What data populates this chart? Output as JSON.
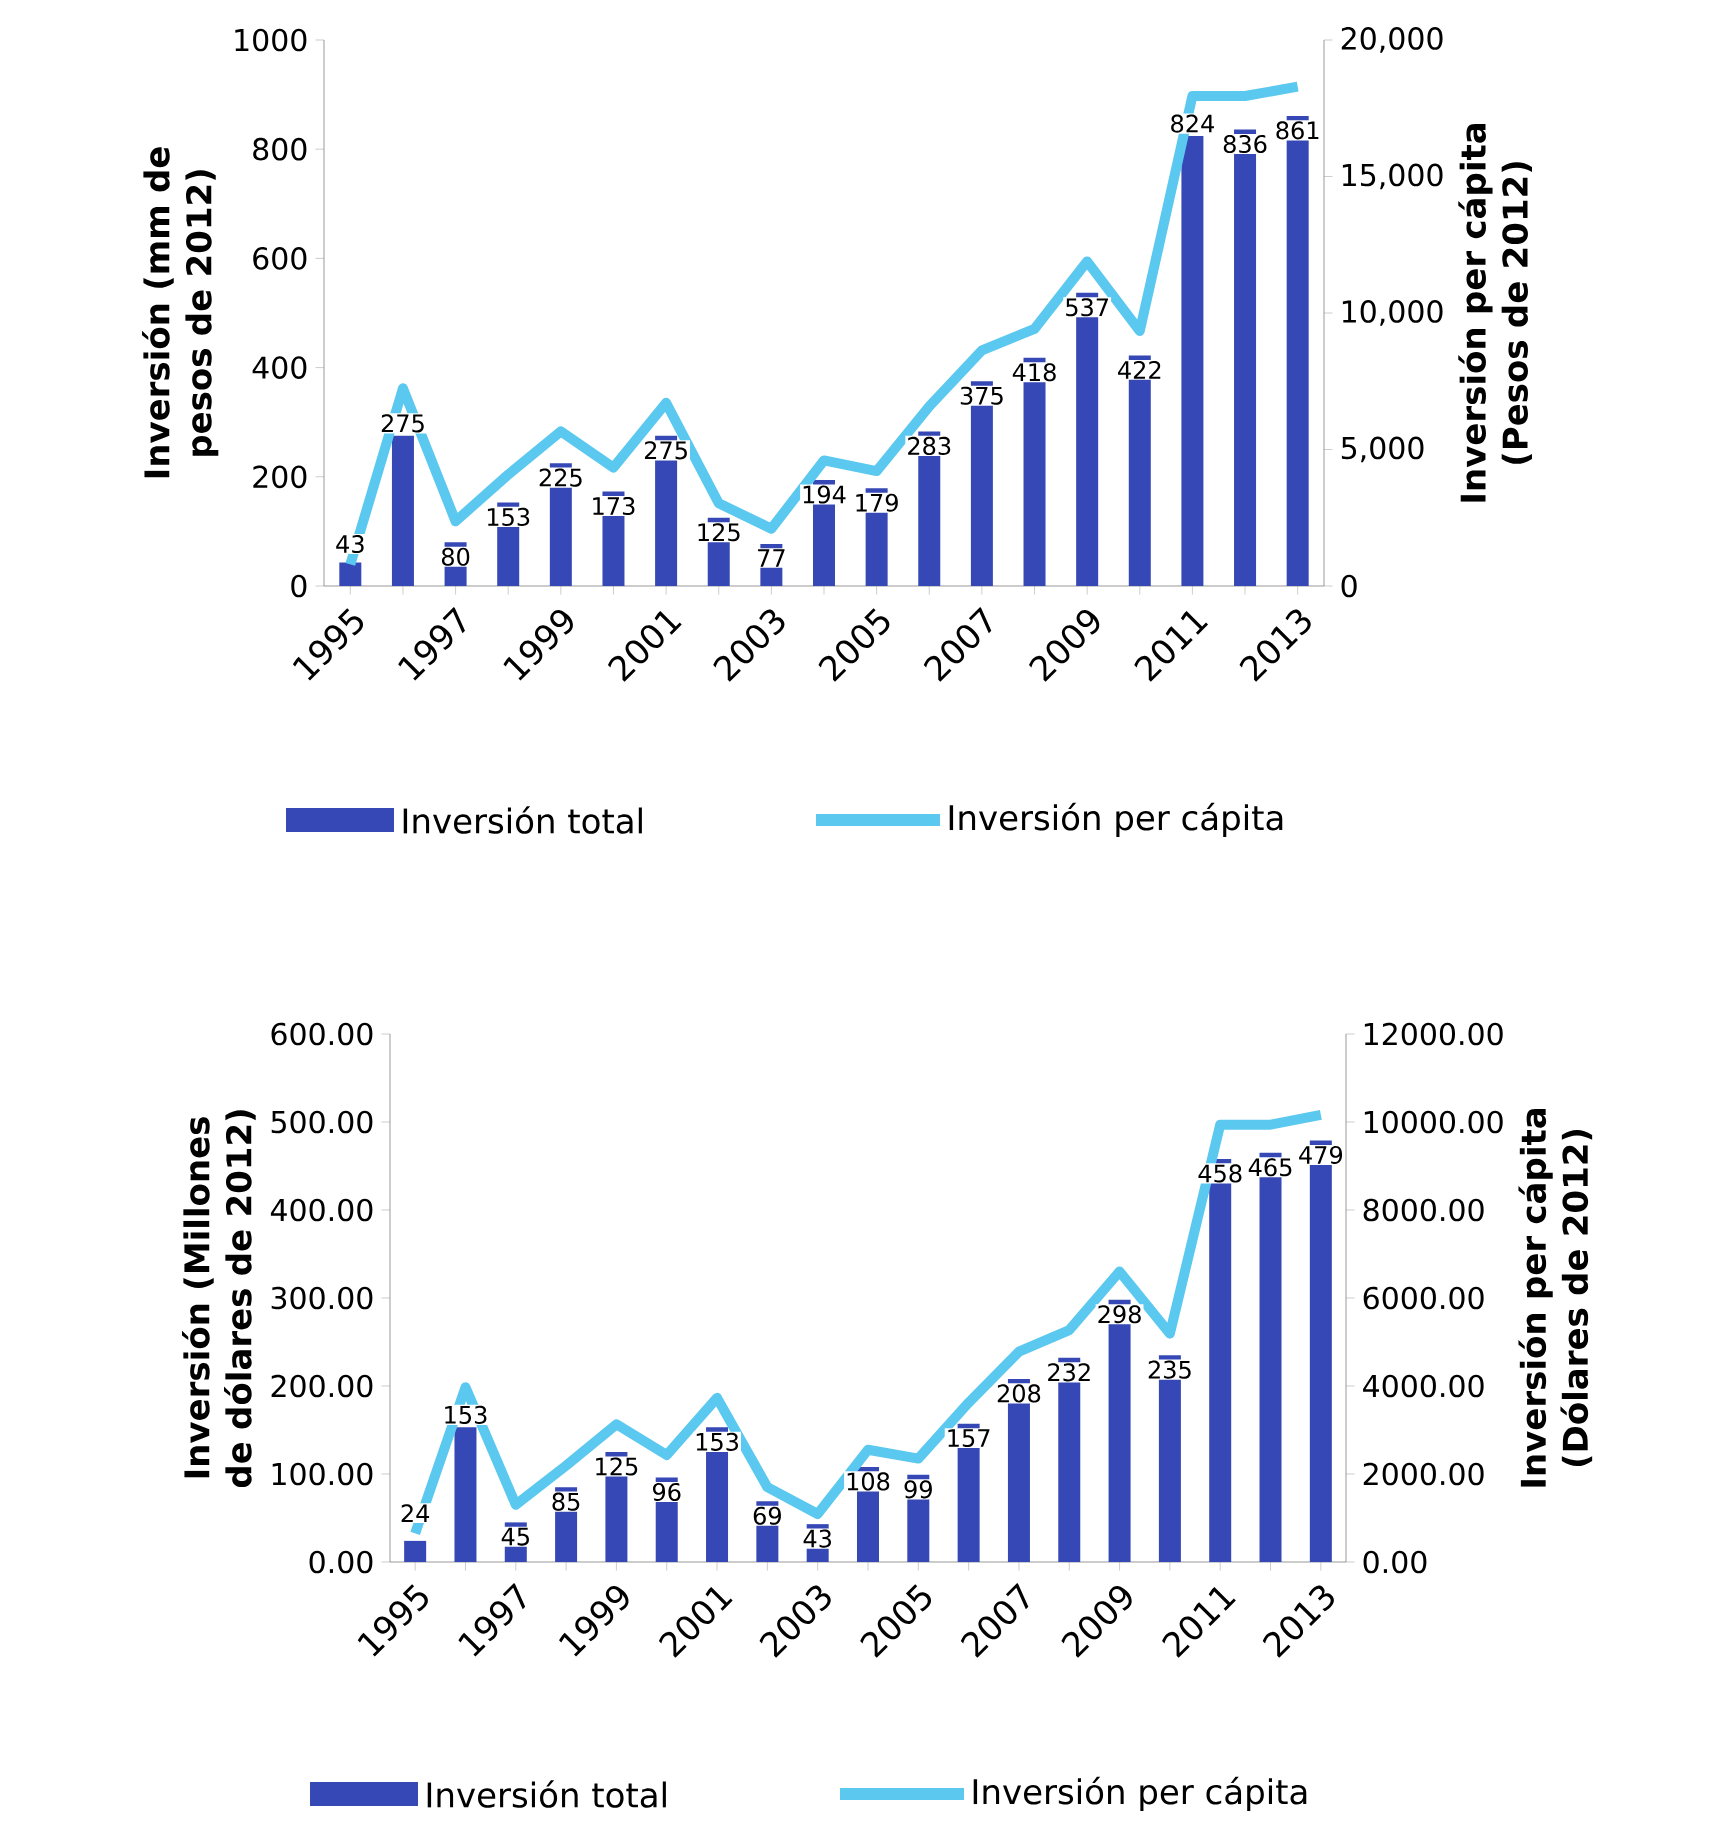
{
  "chart_data": [
    {
      "type": "bar",
      "categories": [
        "1995",
        null,
        "1997",
        null,
        "1999",
        null,
        "2001",
        null,
        "2003",
        null,
        "2005",
        null,
        "2007",
        null,
        "2009",
        null,
        "2011",
        null,
        "2013"
      ],
      "ylabel": "Inversión (mm de pesos de 2012)",
      "y2label": "Inversión per cápita (Pesos de 2012)",
      "series": [
        {
          "name": "Inversión total",
          "color": "#3548b5",
          "values": [
            43,
            275,
            80,
            153,
            225,
            173,
            275,
            125,
            77,
            194,
            179,
            283,
            375,
            418,
            537,
            422,
            824,
            836,
            861
          ],
          "value_labels": [
            "43",
            "275",
            "80",
            "153",
            "225",
            "173",
            "275",
            "125",
            "77",
            "194",
            "179",
            "283",
            "375",
            "418",
            "537",
            "422",
            "824",
            "836",
            "861"
          ]
        },
        {
          "name": "Inversión per cápita",
          "type": "line",
          "axis": "y2",
          "color": "#5bc8f0",
          "values": [
            790,
            7240,
            2370,
            4080,
            5660,
            4340,
            6710,
            3030,
            2100,
            4600,
            4210,
            6580,
            8630,
            9420,
            11890,
            9340,
            17950,
            17950,
            18290
          ]
        }
      ],
      "ylim": [
        0,
        1000
      ],
      "yticks": [
        0,
        200,
        400,
        600,
        800,
        1000
      ],
      "y2lim": [
        0,
        20000
      ],
      "y2ticks": [
        0,
        {
          "value": 5000,
          "label": "5,000"
        },
        {
          "value": 10000,
          "label": "10,000"
        },
        {
          "value": 15000,
          "label": "15,000"
        },
        {
          "value": 20000,
          "label": "20,000"
        }
      ],
      "legend": "bottom"
    },
    {
      "type": "bar",
      "categories": [
        "1995",
        null,
        "1997",
        null,
        "1999",
        null,
        "2001",
        null,
        "2003",
        null,
        "2005",
        null,
        "2007",
        null,
        "2009",
        null,
        "2011",
        null,
        "2013"
      ],
      "ylabel": "Inversión (Millones de dólares de 2012)",
      "y2label": "Inversión per cápita (Dólares de 2012)",
      "series": [
        {
          "name": "Inversión total",
          "color": "#3548b5",
          "values": [
            24,
            153,
            45,
            85,
            125,
            96,
            153,
            69,
            43,
            108,
            99,
            157,
            208,
            232,
            298,
            235,
            458,
            465,
            479
          ],
          "value_labels": [
            "24",
            "153",
            "45",
            "85",
            "125",
            "96",
            "153",
            "69",
            "43",
            "108",
            "99",
            "157",
            "208",
            "232",
            "298",
            "235",
            "458",
            "465",
            "479"
          ]
        },
        {
          "name": "Inversión per cápita",
          "type": "line",
          "axis": "y2",
          "color": "#5bc8f0",
          "values": [
            650,
            3970,
            1300,
            2190,
            3130,
            2430,
            3730,
            1700,
            1090,
            2550,
            2350,
            3620,
            4780,
            5270,
            6600,
            5190,
            9940,
            9940,
            10160
          ]
        }
      ],
      "ylim": [
        0,
        600
      ],
      "yticks": [
        {
          "value": 0,
          "label": "0.00"
        },
        {
          "value": 100,
          "label": "100.00"
        },
        {
          "value": 200,
          "label": "200.00"
        },
        {
          "value": 300,
          "label": "300.00"
        },
        {
          "value": 400,
          "label": "400.00"
        },
        {
          "value": 500,
          "label": "500.00"
        },
        {
          "value": 600,
          "label": "600.00"
        }
      ],
      "y2lim": [
        0,
        12000
      ],
      "y2ticks": [
        {
          "value": 0,
          "label": "0.00"
        },
        {
          "value": 2000,
          "label": "2000.00"
        },
        {
          "value": 4000,
          "label": "4000.00"
        },
        {
          "value": 6000,
          "label": "6000.00"
        },
        {
          "value": 8000,
          "label": "8000.00"
        },
        {
          "value": 10000,
          "label": "10000.00"
        },
        {
          "value": 12000,
          "label": "12000.00"
        }
      ],
      "legend": "bottom"
    }
  ]
}
